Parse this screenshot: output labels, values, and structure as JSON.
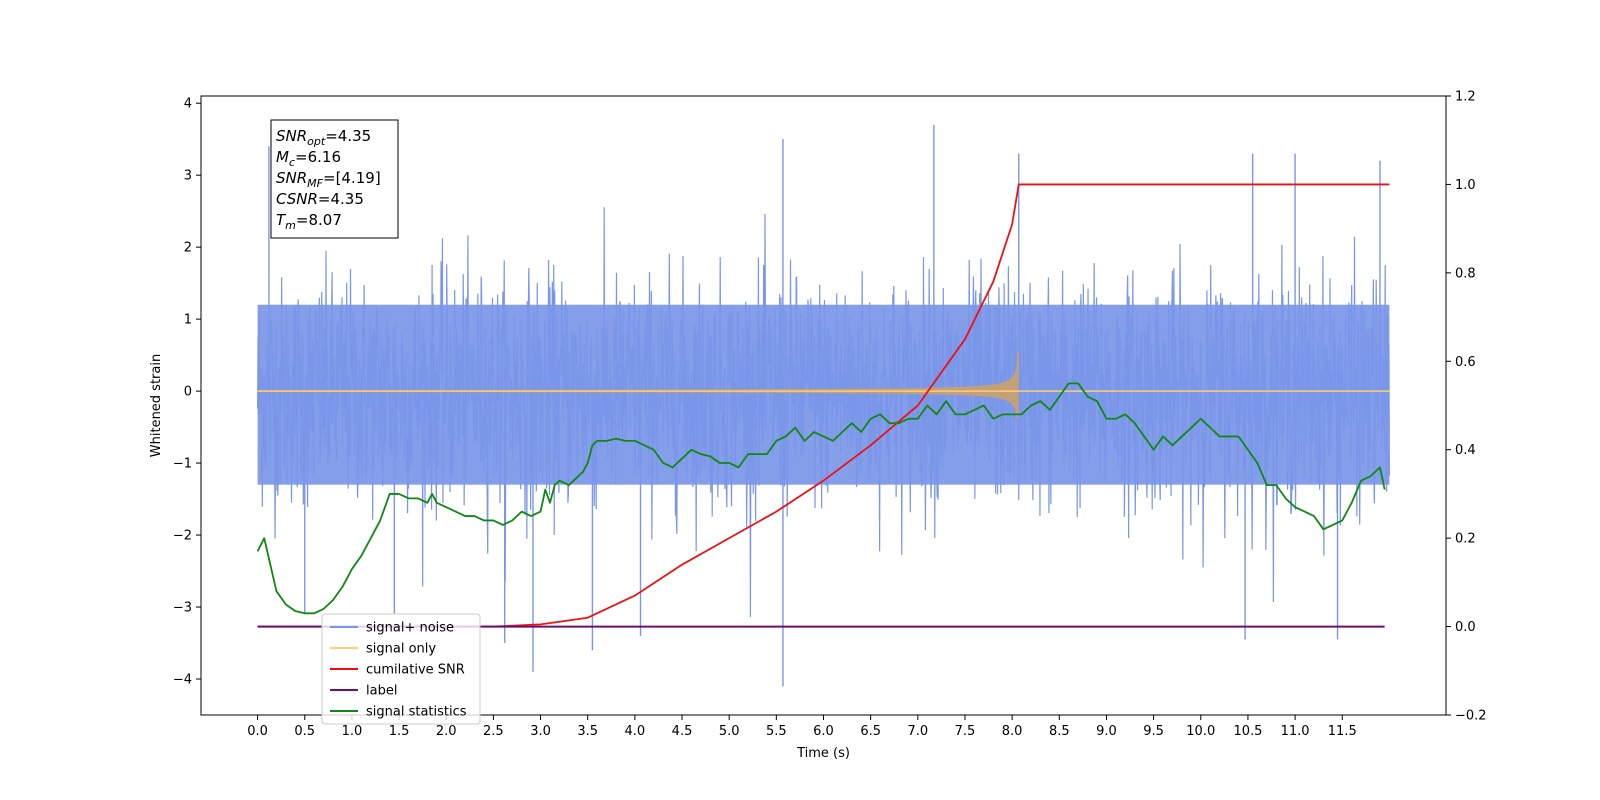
{
  "chart_data": {
    "type": "line",
    "xlabel": "Time (s)",
    "ylabel": "Whitened strain",
    "ylabel_right": "",
    "xlim": [
      -0.6,
      12.6
    ],
    "ylim": [
      -4.5,
      4.1
    ],
    "ylim_right": [
      -0.2,
      1.2
    ],
    "x_ticks": [
      "0.0",
      "0.5",
      "1.0",
      "1.5",
      "2.0",
      "2.5",
      "3.0",
      "3.5",
      "4.0",
      "4.5",
      "5.0",
      "5.5",
      "6.0",
      "6.5",
      "7.0",
      "7.5",
      "8.0",
      "8.5",
      "9.0",
      "9.5",
      "10.0",
      "10.5",
      "11.0",
      "11.5"
    ],
    "y_ticks": [
      "−4",
      "−3",
      "−2",
      "−1",
      "0",
      "1",
      "2",
      "3",
      "4"
    ],
    "y_ticks_right": [
      "−0.2",
      "0.0",
      "0.2",
      "0.4",
      "0.6",
      "0.8",
      "1.0",
      "1.2"
    ],
    "grid": false,
    "legend_position": "lower-left",
    "stats_box": {
      "lines": [
        {
          "sym": "SNR",
          "sub": "opt",
          "rest": "=4.35"
        },
        {
          "sym": "M",
          "sub": "c",
          "rest": "=6.16"
        },
        {
          "sym": "SNR",
          "sub": "MF",
          "rest": "=[4.19]"
        },
        {
          "sym": "CSNR",
          "sub": "",
          "rest": "=4.35"
        },
        {
          "sym": "T",
          "sub": "m",
          "rest": "=8.07"
        }
      ]
    },
    "series": [
      {
        "name": "signal+ noise",
        "axis": "left",
        "color": "#7a96e8",
        "kind": "noise",
        "x_range": [
          0.0,
          12.0
        ],
        "band_upper": 1.2,
        "band_lower": -1.3,
        "spike_max": 3.7,
        "spike_min": -4.1,
        "notable_spikes": [
          [
            0.12,
            3.4
          ],
          [
            5.57,
            3.5
          ],
          [
            7.17,
            3.7
          ],
          [
            8.07,
            3.3
          ],
          [
            10.55,
            3.3
          ],
          [
            11.0,
            3.3
          ],
          [
            11.9,
            3.2
          ],
          [
            2.92,
            -3.9
          ],
          [
            3.55,
            -3.6
          ],
          [
            5.57,
            -4.1
          ],
          [
            2.62,
            -3.5
          ],
          [
            10.47,
            -3.45
          ],
          [
            11.45,
            -3.45
          ],
          [
            4.06,
            -3.4
          ],
          [
            0.5,
            -3.1
          ],
          [
            1.45,
            -3.1
          ]
        ]
      },
      {
        "name": "signal only",
        "axis": "left",
        "color": "#ffcc77",
        "kind": "chirp",
        "x_range": [
          0.0,
          12.0
        ],
        "merger_time": 8.07,
        "peak_amplitude": 0.55
      },
      {
        "name": "cumilative SNR",
        "axis": "right",
        "color": "#ee1111",
        "kind": "line",
        "x": [
          0.0,
          2.5,
          3.0,
          3.5,
          4.0,
          4.5,
          5.0,
          5.5,
          6.0,
          6.5,
          7.0,
          7.5,
          7.8,
          8.0,
          8.07,
          12.0
        ],
        "y": [
          0.0,
          0.0,
          0.005,
          0.02,
          0.07,
          0.14,
          0.2,
          0.26,
          0.33,
          0.41,
          0.5,
          0.65,
          0.78,
          0.91,
          1.0,
          1.0
        ]
      },
      {
        "name": "label",
        "axis": "right",
        "color": "#6a0f6e",
        "kind": "line",
        "x": [
          0.0,
          11.95
        ],
        "y": [
          0.0,
          0.0
        ]
      },
      {
        "name": "signal statistics",
        "axis": "right",
        "color": "#118811",
        "kind": "line",
        "x": [
          0.0,
          0.07,
          0.2,
          0.3,
          0.4,
          0.5,
          0.6,
          0.7,
          0.8,
          0.9,
          1.0,
          1.1,
          1.2,
          1.3,
          1.4,
          1.5,
          1.6,
          1.7,
          1.8,
          1.85,
          1.9,
          2.0,
          2.1,
          2.2,
          2.3,
          2.4,
          2.5,
          2.6,
          2.7,
          2.8,
          2.9,
          3.0,
          3.05,
          3.1,
          3.15,
          3.2,
          3.3,
          3.4,
          3.45,
          3.5,
          3.55,
          3.6,
          3.7,
          3.8,
          3.9,
          4.0,
          4.1,
          4.2,
          4.3,
          4.4,
          4.5,
          4.6,
          4.7,
          4.8,
          4.9,
          5.0,
          5.1,
          5.2,
          5.3,
          5.4,
          5.5,
          5.6,
          5.7,
          5.8,
          5.9,
          6.0,
          6.1,
          6.2,
          6.3,
          6.4,
          6.5,
          6.6,
          6.7,
          6.8,
          6.9,
          7.0,
          7.1,
          7.2,
          7.3,
          7.4,
          7.5,
          7.6,
          7.7,
          7.8,
          7.9,
          8.0,
          8.1,
          8.2,
          8.3,
          8.4,
          8.5,
          8.6,
          8.7,
          8.8,
          8.9,
          9.0,
          9.1,
          9.2,
          9.3,
          9.4,
          9.5,
          9.6,
          9.7,
          9.8,
          9.9,
          10.0,
          10.1,
          10.2,
          10.3,
          10.4,
          10.5,
          10.6,
          10.7,
          10.8,
          10.9,
          11.0,
          11.1,
          11.2,
          11.3,
          11.4,
          11.5,
          11.6,
          11.7,
          11.8,
          11.9,
          11.95
        ],
        "y": [
          0.17,
          0.2,
          0.08,
          0.05,
          0.035,
          0.03,
          0.03,
          0.04,
          0.06,
          0.09,
          0.13,
          0.16,
          0.2,
          0.24,
          0.3,
          0.3,
          0.29,
          0.29,
          0.28,
          0.3,
          0.28,
          0.27,
          0.26,
          0.25,
          0.25,
          0.24,
          0.24,
          0.23,
          0.24,
          0.26,
          0.25,
          0.26,
          0.31,
          0.28,
          0.32,
          0.33,
          0.32,
          0.34,
          0.35,
          0.37,
          0.41,
          0.42,
          0.42,
          0.425,
          0.42,
          0.42,
          0.41,
          0.4,
          0.37,
          0.36,
          0.38,
          0.4,
          0.39,
          0.385,
          0.37,
          0.37,
          0.36,
          0.39,
          0.39,
          0.39,
          0.42,
          0.43,
          0.45,
          0.42,
          0.44,
          0.43,
          0.42,
          0.44,
          0.46,
          0.44,
          0.47,
          0.48,
          0.46,
          0.46,
          0.47,
          0.47,
          0.5,
          0.48,
          0.51,
          0.48,
          0.48,
          0.49,
          0.5,
          0.47,
          0.48,
          0.48,
          0.48,
          0.5,
          0.51,
          0.49,
          0.52,
          0.55,
          0.55,
          0.52,
          0.51,
          0.47,
          0.47,
          0.48,
          0.46,
          0.43,
          0.4,
          0.43,
          0.41,
          0.43,
          0.45,
          0.47,
          0.45,
          0.43,
          0.43,
          0.43,
          0.4,
          0.37,
          0.32,
          0.32,
          0.29,
          0.27,
          0.26,
          0.25,
          0.22,
          0.23,
          0.24,
          0.28,
          0.33,
          0.34,
          0.36,
          0.31
        ]
      }
    ]
  }
}
